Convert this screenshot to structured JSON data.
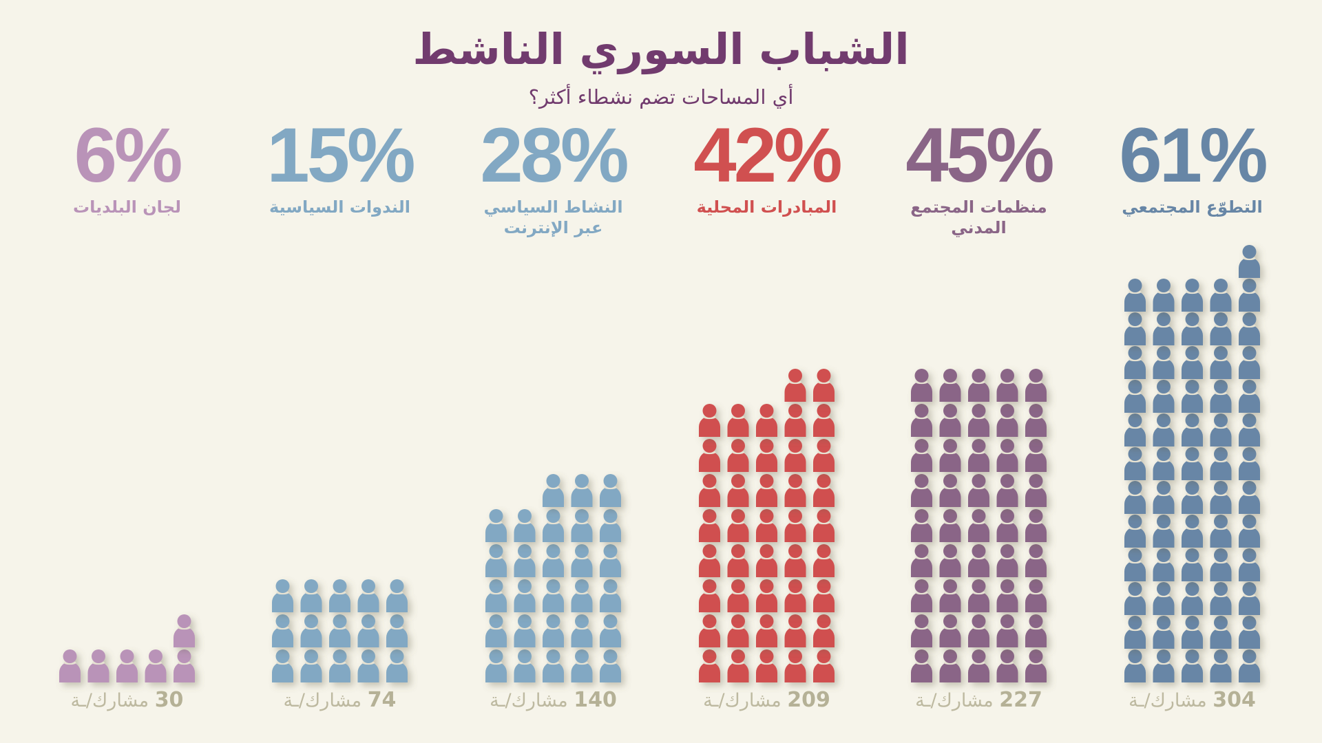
{
  "title": "الشباب السوري الناشط",
  "subtitle": "أي المساحات تضم نشطاء أكثر؟",
  "chart_data": {
    "type": "bar",
    "subtype": "pictogram",
    "title": "الشباب السوري الناشط",
    "subtitle": "أي المساحات تضم نشطاء أكثر؟",
    "unit_per_icon": 5,
    "icons_per_row": 5,
    "count_suffix": "مشارك/ـة",
    "categories": [
      "لجان البلديات",
      "الندوات السياسية",
      "النشاط السياسي عبر الإنترنت",
      "المبادرات المحلية",
      "منظمات المجتمع المدني",
      "التطوّع المجتمعي"
    ],
    "series": [
      {
        "name": "percent",
        "values": [
          6,
          15,
          28,
          42,
          45,
          61
        ]
      },
      {
        "name": "participants",
        "values": [
          30,
          74,
          140,
          209,
          227,
          304
        ]
      }
    ],
    "items": [
      {
        "label_lines": [
          "لجان البلديات"
        ],
        "percent": 6,
        "percent_label": "6%",
        "participants": 30,
        "icons": 6,
        "color": "#B993B8"
      },
      {
        "label_lines": [
          "الندوات السياسية"
        ],
        "percent": 15,
        "percent_label": "15%",
        "participants": 74,
        "icons": 15,
        "color": "#82A8C3"
      },
      {
        "label_lines": [
          "النشاط السياسي",
          "عبر الإنترنت"
        ],
        "percent": 28,
        "percent_label": "28%",
        "participants": 140,
        "icons": 28,
        "color": "#82A8C3"
      },
      {
        "label_lines": [
          "المبادرات المحلية"
        ],
        "percent": 42,
        "percent_label": "42%",
        "participants": 209,
        "icons": 42,
        "color": "#D05050"
      },
      {
        "label_lines": [
          "منظمات المجتمع",
          "المدني"
        ],
        "percent": 45,
        "percent_label": "45%",
        "participants": 227,
        "icons": 45,
        "color": "#8A6587"
      },
      {
        "label_lines": [
          "التطوّع المجتمعي"
        ],
        "percent": 61,
        "percent_label": "61%",
        "participants": 304,
        "icons": 61,
        "color": "#6786A6"
      }
    ],
    "xlabel": "",
    "ylabel": "",
    "grid": false,
    "legend": "none"
  },
  "colors": {
    "background": "#F6F4EA",
    "title": "#713B6E",
    "count_text": "#BDB9A0"
  }
}
